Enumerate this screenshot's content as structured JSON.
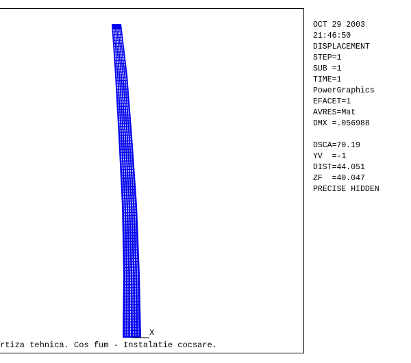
{
  "info": {
    "lines": [
      "OCT 29 2003",
      "21:46:50",
      "DISPLACEMENT",
      "STEP=1",
      "SUB =1",
      "TIME=1",
      "PowerGraphics",
      "EFACET=1",
      "AVRES=Mat",
      "DMX =.056988",
      "",
      "DSCA=70.19",
      "YV  =-1",
      "DIST=44.051",
      "ZF  =40.047",
      "PRECISE HIDDEN"
    ]
  },
  "caption": "rtiza tehnica. Cos fum - Instalatie cocsare.",
  "axis_label": "X",
  "colors": {
    "mesh": "#0000ee",
    "mesh_light": "#ffffff",
    "frame": "#000000"
  }
}
